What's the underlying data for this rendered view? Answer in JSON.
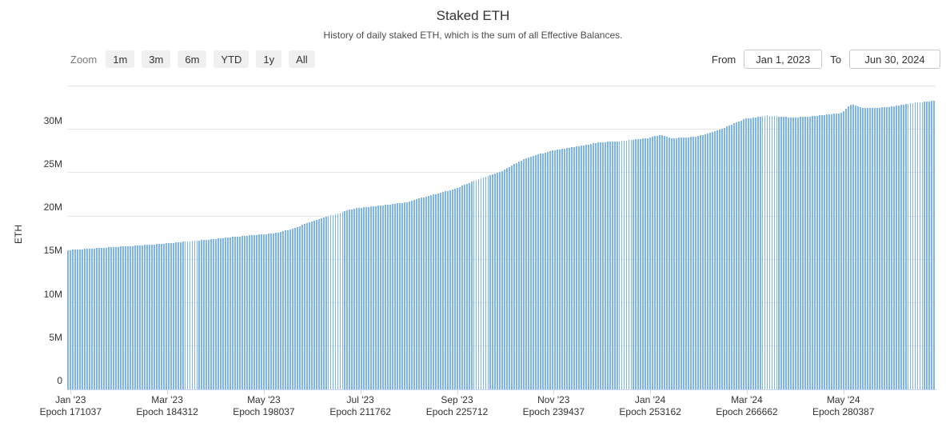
{
  "chart": {
    "title": "Staked ETH",
    "subtitle": "History of daily staked ETH, which is the sum of all Effective Balances."
  },
  "range_selector": {
    "zoom_label": "Zoom",
    "buttons": [
      {
        "label": "1m"
      },
      {
        "label": "3m"
      },
      {
        "label": "6m"
      },
      {
        "label": "YTD"
      },
      {
        "label": "1y"
      },
      {
        "label": "All"
      }
    ],
    "from_label": "From",
    "from_value": "Jan 1, 2023",
    "to_label": "To",
    "to_value": "Jun 30, 2024"
  },
  "chart_data": {
    "type": "bar",
    "title": "Staked ETH",
    "subtitle": "History of daily staked ETH, which is the sum of all Effective Balances.",
    "xlabel": "",
    "ylabel": "ETH",
    "unit": "million ETH",
    "grid": true,
    "x_range": [
      "Jan 1, 2023",
      "Jun 30, 2024"
    ],
    "x_range_days": [
      0,
      545
    ],
    "ylim_million": [
      0,
      35.7
    ],
    "y_ticks": [
      {
        "value_million": 0,
        "label": "0"
      },
      {
        "value_million": 5,
        "label": "5M"
      },
      {
        "value_million": 10,
        "label": "10M"
      },
      {
        "value_million": 15,
        "label": "15M"
      },
      {
        "value_million": 20,
        "label": "20M"
      },
      {
        "value_million": 25,
        "label": "25M"
      },
      {
        "value_million": 30,
        "label": "30M"
      },
      {
        "value_million": 35,
        "label": ""
      }
    ],
    "x_ticks": [
      {
        "month": "Jan '23",
        "epoch": "Epoch 171037",
        "day": 0
      },
      {
        "month": "Mar '23",
        "epoch": "Epoch 184312",
        "day": 59
      },
      {
        "month": "May '23",
        "epoch": "Epoch 198037",
        "day": 120
      },
      {
        "month": "Jul '23",
        "epoch": "Epoch 211762",
        "day": 181
      },
      {
        "month": "Sep '23",
        "epoch": "Epoch 225712",
        "day": 243
      },
      {
        "month": "Nov '23",
        "epoch": "Epoch 239437",
        "day": 304
      },
      {
        "month": "Jan '24",
        "epoch": "Epoch 253162",
        "day": 365
      },
      {
        "month": "Mar '24",
        "epoch": "Epoch 266662",
        "day": 425
      },
      {
        "month": "May '24",
        "epoch": "Epoch 280387",
        "day": 486
      }
    ],
    "series": [
      {
        "name": "Staked ETH",
        "color": "#7cb5ec",
        "points_day_millionEth": [
          [
            0,
            16.05
          ],
          [
            15,
            16.25
          ],
          [
            31,
            16.45
          ],
          [
            45,
            16.6
          ],
          [
            59,
            16.8
          ],
          [
            74,
            17.05
          ],
          [
            90,
            17.3
          ],
          [
            105,
            17.6
          ],
          [
            120,
            17.85
          ],
          [
            130,
            18.0
          ],
          [
            140,
            18.45
          ],
          [
            151,
            19.2
          ],
          [
            166,
            20.1
          ],
          [
            181,
            20.9
          ],
          [
            196,
            21.2
          ],
          [
            212,
            21.55
          ],
          [
            226,
            22.3
          ],
          [
            243,
            23.1
          ],
          [
            257,
            24.2
          ],
          [
            273,
            25.2
          ],
          [
            287,
            26.6
          ],
          [
            304,
            27.55
          ],
          [
            318,
            27.95
          ],
          [
            334,
            28.5
          ],
          [
            348,
            28.65
          ],
          [
            365,
            29.0
          ],
          [
            373,
            29.4
          ],
          [
            379,
            28.95
          ],
          [
            390,
            29.1
          ],
          [
            396,
            29.2
          ],
          [
            410,
            30.0
          ],
          [
            425,
            31.2
          ],
          [
            439,
            31.6
          ],
          [
            456,
            31.35
          ],
          [
            470,
            31.55
          ],
          [
            486,
            31.9
          ],
          [
            492,
            32.9
          ],
          [
            499,
            32.45
          ],
          [
            510,
            32.5
          ],
          [
            517,
            32.6
          ],
          [
            531,
            33.05
          ],
          [
            545,
            33.3
          ]
        ]
      }
    ],
    "colors": {
      "bar": "#7cb5ec",
      "gridline": "#e6e6e6",
      "axis_line": "#ccd6eb",
      "label_text": "#333333"
    },
    "legend": "off"
  }
}
